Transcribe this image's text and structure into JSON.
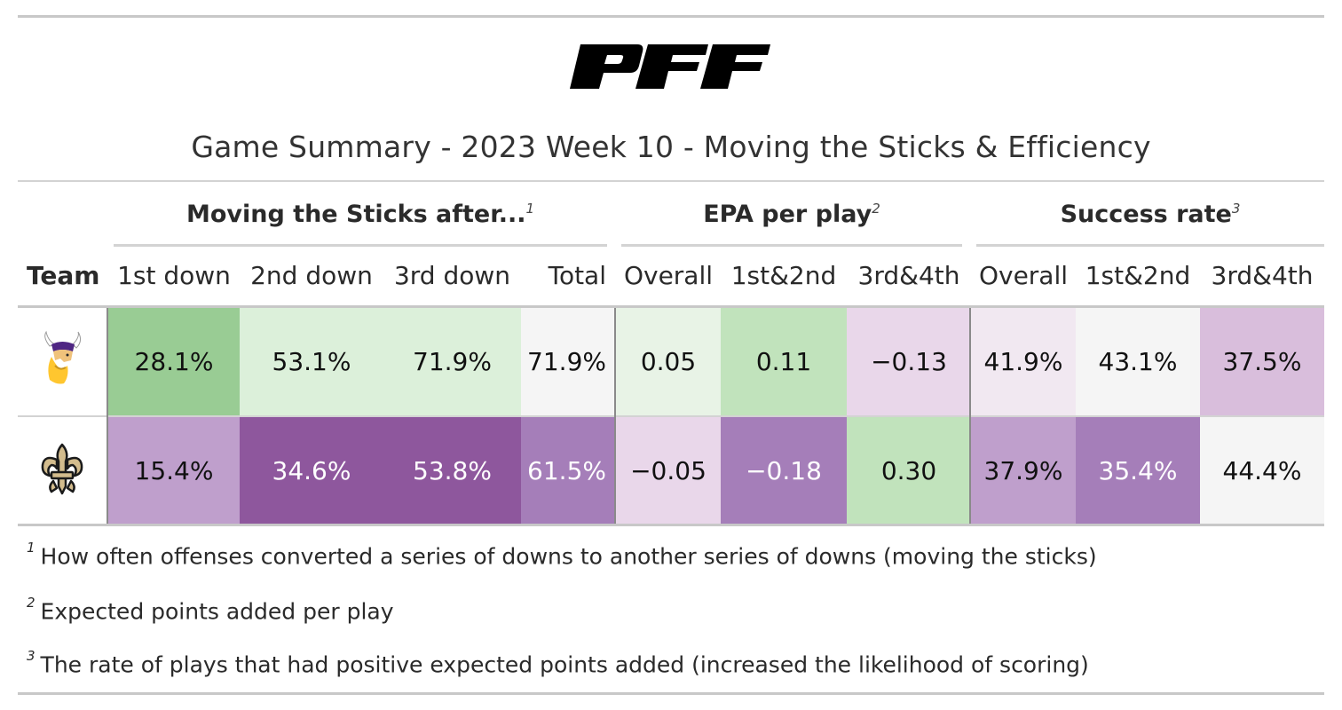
{
  "logo_text": "PFF",
  "title": "Game Summary - 2023 Week 10 - Moving the Sticks & Efficiency",
  "spanners": [
    {
      "label": "Moving the Sticks after...",
      "note": "1"
    },
    {
      "label": "EPA per play",
      "note": "2"
    },
    {
      "label": "Success rate",
      "note": "3"
    }
  ],
  "columns": [
    "Team",
    "1st down",
    "2nd down",
    "3rd down",
    "Total",
    "Overall",
    "1st&2nd",
    "3rd&4th",
    "Overall",
    "1st&2nd",
    "3rd&4th"
  ],
  "rows": [
    {
      "team_logo": "vikings-logo",
      "cells": [
        {
          "v": "28.1%",
          "bg": "#99cc94",
          "fg": "#111111"
        },
        {
          "v": "53.1%",
          "bg": "#dcf0da",
          "fg": "#111111"
        },
        {
          "v": "71.9%",
          "bg": "#dcf0da",
          "fg": "#111111"
        },
        {
          "v": "71.9%",
          "bg": "#f5f5f5",
          "fg": "#111111"
        },
        {
          "v": "0.05",
          "bg": "#e8f3e6",
          "fg": "#111111"
        },
        {
          "v": "0.11",
          "bg": "#c1e3bc",
          "fg": "#111111"
        },
        {
          "v": "−0.13",
          "bg": "#e9d7ea",
          "fg": "#111111"
        },
        {
          "v": "41.9%",
          "bg": "#f1e8f1",
          "fg": "#111111"
        },
        {
          "v": "43.1%",
          "bg": "#f5f5f5",
          "fg": "#111111"
        },
        {
          "v": "37.5%",
          "bg": "#d9bedc",
          "fg": "#111111"
        }
      ]
    },
    {
      "team_logo": "saints-logo",
      "cells": [
        {
          "v": "15.4%",
          "bg": "#bf9fcc",
          "fg": "#111111"
        },
        {
          "v": "34.6%",
          "bg": "#8e579d",
          "fg": "#ffffff"
        },
        {
          "v": "53.8%",
          "bg": "#8e579d",
          "fg": "#ffffff"
        },
        {
          "v": "61.5%",
          "bg": "#a57eb9",
          "fg": "#ffffff"
        },
        {
          "v": "−0.05",
          "bg": "#e9d7ea",
          "fg": "#111111"
        },
        {
          "v": "−0.18",
          "bg": "#a57eb9",
          "fg": "#ffffff"
        },
        {
          "v": "0.30",
          "bg": "#c1e3bc",
          "fg": "#111111"
        },
        {
          "v": "37.9%",
          "bg": "#bf9fcc",
          "fg": "#111111"
        },
        {
          "v": "35.4%",
          "bg": "#a57eb9",
          "fg": "#ffffff"
        },
        {
          "v": "44.4%",
          "bg": "#f5f5f5",
          "fg": "#111111"
        }
      ]
    }
  ],
  "footnotes": [
    {
      "mark": "1",
      "text": "How often offenses converted a series of downs to another series of downs (moving the sticks)"
    },
    {
      "mark": "2",
      "text": "Expected points added per play"
    },
    {
      "mark": "3",
      "text": "The rate of plays that had positive expected points added (increased the likelihood of scoring)"
    }
  ]
}
